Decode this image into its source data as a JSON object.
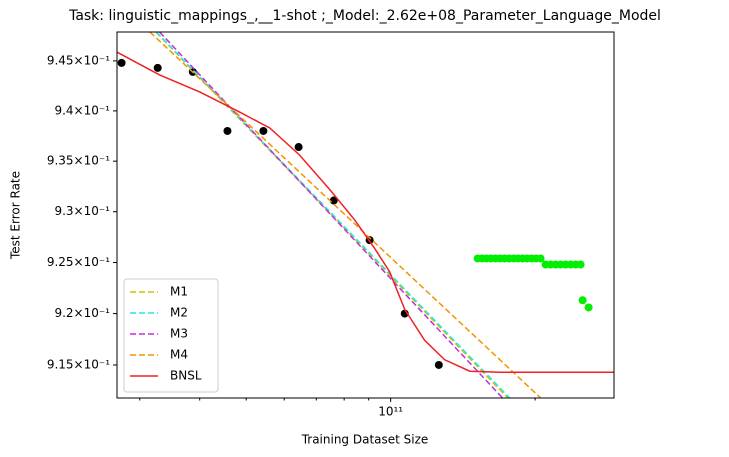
{
  "chart_data": {
    "type": "line",
    "title": "Task: linguistic_mappings_,__1-shot ;_Model:_2.62e+08_Parameter_Language_Model",
    "x_label": "Training Dataset Size",
    "y_label": "Test Error Rate",
    "x_log": true,
    "y_log": true,
    "xlim": [
      26900000000.0,
      292000000000.0
    ],
    "ylim": [
      0.9118,
      0.9479
    ],
    "xticks": [
      {
        "value": 100000000000.0,
        "label": "10¹¹"
      }
    ],
    "xminorticks": [
      30000000000.0,
      40000000000.0,
      50000000000.0,
      60000000000.0,
      70000000000.0,
      80000000000.0,
      90000000000.0,
      200000000000.0
    ],
    "yticks": [
      {
        "value": 0.915,
        "label": "9.15×10⁻¹"
      },
      {
        "value": 0.92,
        "label": "9.2×10⁻¹"
      },
      {
        "value": 0.925,
        "label": "9.25×10⁻¹"
      },
      {
        "value": 0.93,
        "label": "9.3×10⁻¹"
      },
      {
        "value": 0.935,
        "label": "9.35×10⁻¹"
      },
      {
        "value": 0.94,
        "label": "9.4×10⁻¹"
      },
      {
        "value": 0.945,
        "label": "9.45×10⁻¹"
      }
    ],
    "legend_position": "lower left",
    "series": [
      {
        "kind": "scatter",
        "color": "#000000",
        "x": [
          27500000000.0,
          32700000000.0,
          38700000000.0,
          45700000000.0,
          54300000000.0,
          64300000000.0,
          76100000000.0,
          90400000000.0,
          107000000000.0,
          126000000000.0
        ],
        "values": [
          0.9448,
          0.9443,
          0.9439,
          0.938,
          0.938,
          0.9364,
          0.9311,
          0.9272,
          0.92,
          0.915
        ]
      },
      {
        "kind": "scatter",
        "color": "#00ee00",
        "x": [
          151800000000.0,
          155100000000.0,
          158500000000.0,
          161900000000.0,
          165500000000.0,
          169100000000.0,
          172800000000.0,
          176500000000.0,
          180400000000.0,
          184300000000.0,
          188300000000.0,
          192400000000.0,
          196600000000.0,
          200900000000.0,
          205300000000.0,
          210300000000.0,
          215400000000.0,
          220700000000.0,
          226000000000.0,
          231500000000.0,
          237200000000.0,
          242900000000.0,
          248800000000.0,
          251200000000.0,
          258500000000.0
        ],
        "values": [
          0.9254,
          0.9254,
          0.9254,
          0.9254,
          0.9254,
          0.9254,
          0.9254,
          0.9254,
          0.9254,
          0.9254,
          0.9254,
          0.9254,
          0.9254,
          0.9254,
          0.9254,
          0.9248,
          0.9248,
          0.9248,
          0.9248,
          0.9248,
          0.9248,
          0.9248,
          0.9248,
          0.9213,
          0.9206
        ]
      },
      {
        "kind": "line",
        "name": "M1",
        "color": "#d4c400",
        "dashed": true,
        "x": [
          32400000000.0,
          175400000000.0
        ],
        "values": [
          0.9479,
          0.9118
        ]
      },
      {
        "kind": "line",
        "name": "M2",
        "color": "#22e8e8",
        "dashed": true,
        "x": [
          32500000000.0,
          177000000000.0
        ],
        "values": [
          0.9479,
          0.9118
        ]
      },
      {
        "kind": "line",
        "name": "M3",
        "color": "#c030d8",
        "dashed": true,
        "x": [
          33000000000.0,
          171100000000.0
        ],
        "values": [
          0.9479,
          0.9118
        ]
      },
      {
        "kind": "line",
        "name": "M4",
        "color": "#f59300",
        "dashed": true,
        "x": [
          31500000000.0,
          205400000000.0
        ],
        "values": [
          0.9479,
          0.9118
        ]
      },
      {
        "kind": "line",
        "name": "BNSL",
        "color": "#ee2222",
        "dashed": false,
        "x": [
          26850000000.0,
          33000000000.0,
          40000000000.0,
          48400000000.0,
          56000000000.0,
          64600000000.0,
          74600000000.0,
          84100000000.0,
          92600000000.0,
          99500000000.0,
          107000000000.0,
          117700000000.0,
          129600000000.0,
          146200000000.0,
          168700000000.0,
          292000000000.0
        ],
        "values": [
          0.9459,
          0.9436,
          0.9419,
          0.9399,
          0.9383,
          0.9356,
          0.9322,
          0.9292,
          0.9264,
          0.9241,
          0.9204,
          0.9174,
          0.9155,
          0.9144,
          0.9143,
          0.9143
        ]
      }
    ]
  }
}
